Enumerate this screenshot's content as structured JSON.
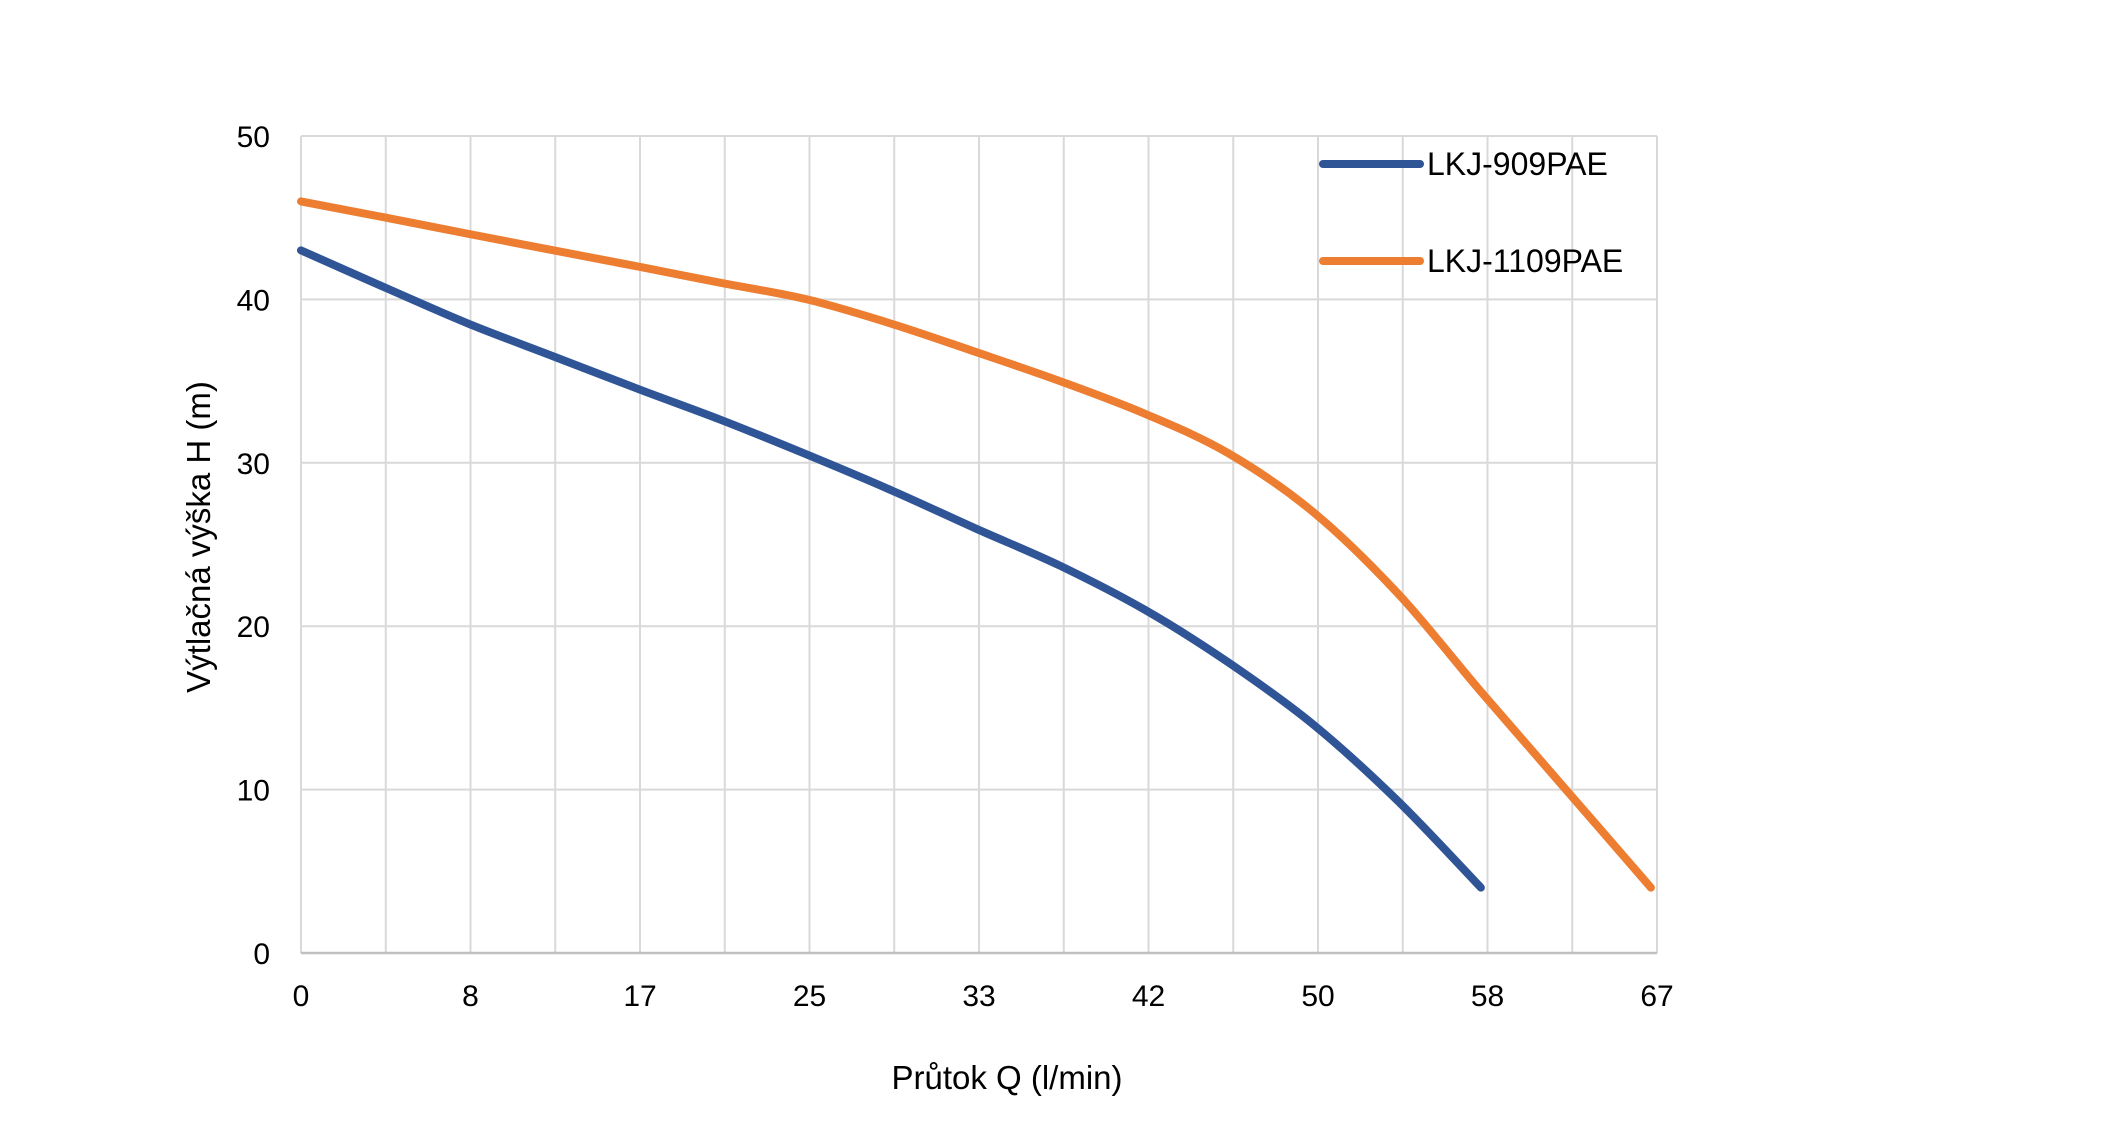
{
  "chart_data": {
    "type": "line",
    "title": "",
    "xlabel": "Průtok Q (l/min)",
    "ylabel": "Výtlačná výška H (m)",
    "x_tick_labels": [
      "0",
      "8",
      "17",
      "25",
      "33",
      "42",
      "50",
      "58",
      "67"
    ],
    "y_tick_labels": [
      "0",
      "10",
      "20",
      "30",
      "40",
      "50"
    ],
    "xlim": [
      0,
      67
    ],
    "ylim": [
      0,
      50
    ],
    "grid": true,
    "legend_position": "top-right",
    "series": [
      {
        "name": "LKJ-909PAE",
        "color": "#2F5597",
        "x": [
          0,
          4.2,
          8.3,
          12.5,
          16.7,
          20.8,
          25,
          29.2,
          33.3,
          37.5,
          41.7,
          45.8,
          50,
          54.2,
          58.3
        ],
        "y": [
          43,
          40.7,
          38.5,
          36.5,
          34.5,
          32.6,
          30.5,
          28.3,
          26,
          23.7,
          21,
          17.8,
          14,
          9.3,
          4
        ]
      },
      {
        "name": "LKJ-1109PAE",
        "color": "#ED7D31",
        "x": [
          0,
          4.2,
          8.3,
          12.5,
          16.7,
          20.8,
          25,
          29.2,
          33.3,
          37.5,
          41.7,
          45.8,
          50,
          54.2,
          58.3,
          62.5,
          66.7
        ],
        "y": [
          46,
          45,
          44,
          43,
          42,
          41,
          40,
          38.5,
          36.8,
          35,
          33,
          30.6,
          27,
          22,
          16,
          10,
          4
        ]
      }
    ]
  }
}
